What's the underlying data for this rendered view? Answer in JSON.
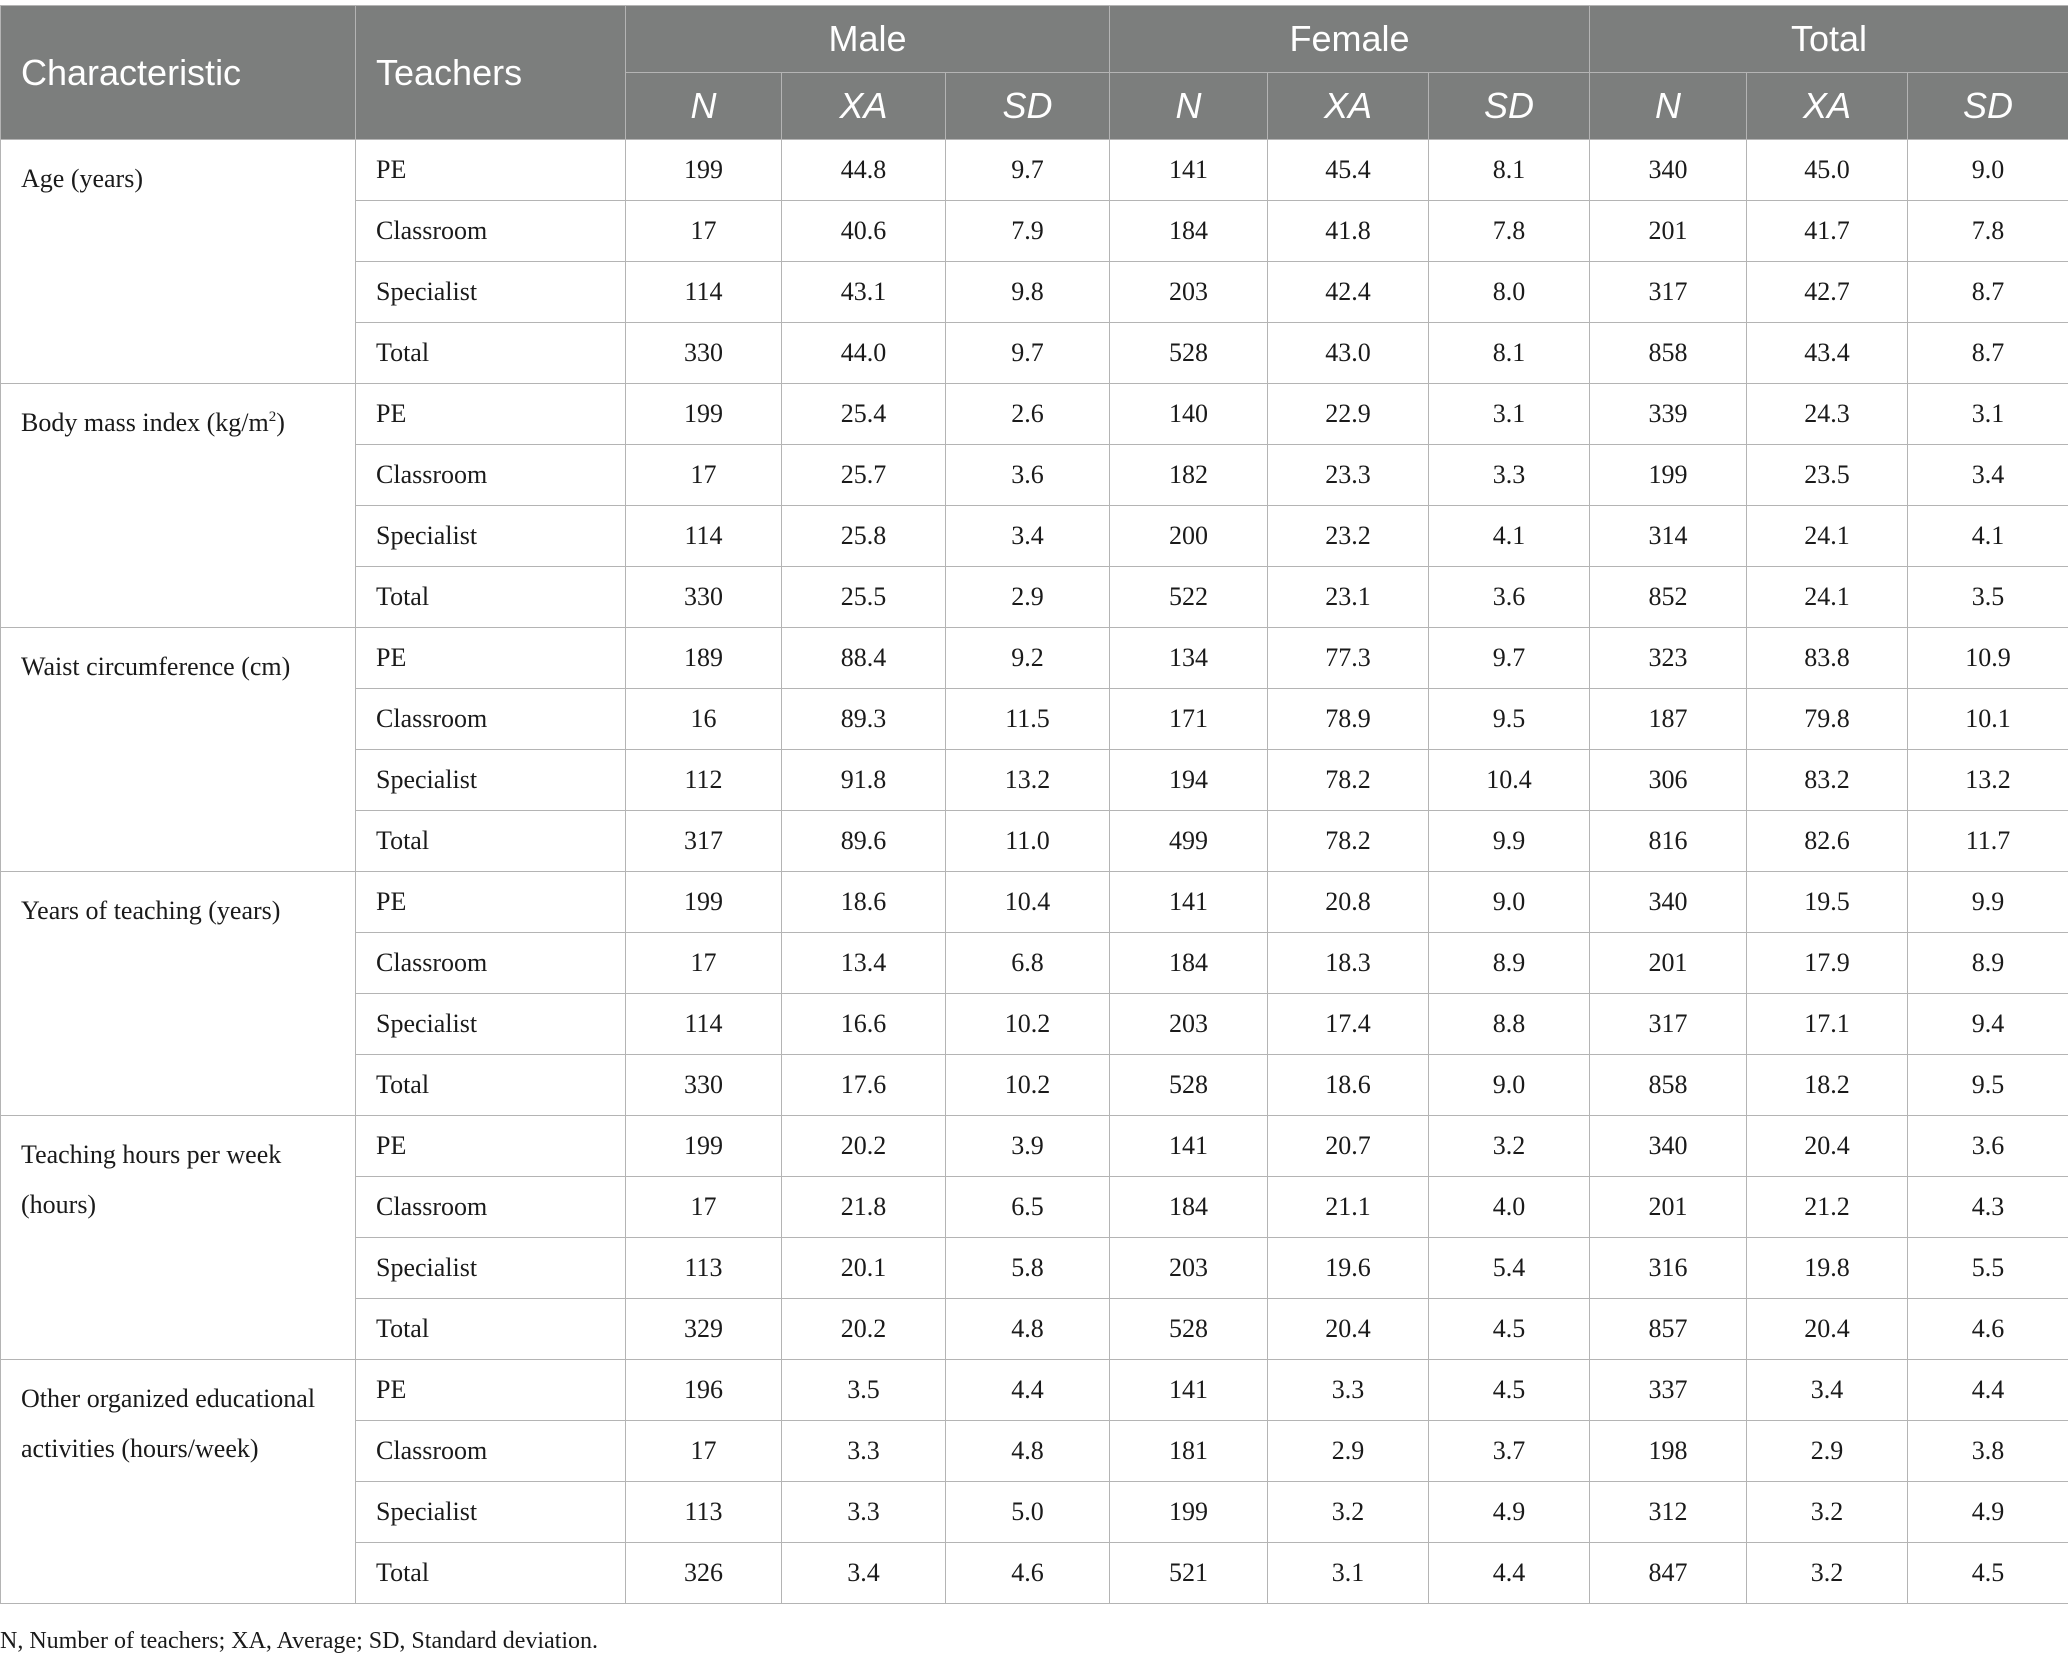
{
  "headers": {
    "characteristic": "Characteristic",
    "teachers": "Teachers",
    "groups": [
      "Male",
      "Female",
      "Total"
    ],
    "stats": [
      "N",
      "XA",
      "SD"
    ]
  },
  "sections": [
    {
      "label": "Age (years)",
      "rows": [
        {
          "teacher": "PE",
          "values": [
            "199",
            "44.8",
            "9.7",
            "141",
            "45.4",
            "8.1",
            "340",
            "45.0",
            "9.0"
          ]
        },
        {
          "teacher": "Classroom",
          "values": [
            "17",
            "40.6",
            "7.9",
            "184",
            "41.8",
            "7.8",
            "201",
            "41.7",
            "7.8"
          ]
        },
        {
          "teacher": "Specialist",
          "values": [
            "114",
            "43.1",
            "9.8",
            "203",
            "42.4",
            "8.0",
            "317",
            "42.7",
            "8.7"
          ]
        },
        {
          "teacher": "Total",
          "values": [
            "330",
            "44.0",
            "9.7",
            "528",
            "43.0",
            "8.1",
            "858",
            "43.4",
            "8.7"
          ]
        }
      ]
    },
    {
      "label": "Body mass index (kg/m",
      "label_sup": "2",
      "label_after": ")",
      "rows": [
        {
          "teacher": "PE",
          "values": [
            "199",
            "25.4",
            "2.6",
            "140",
            "22.9",
            "3.1",
            "339",
            "24.3",
            "3.1"
          ]
        },
        {
          "teacher": "Classroom",
          "values": [
            "17",
            "25.7",
            "3.6",
            "182",
            "23.3",
            "3.3",
            "199",
            "23.5",
            "3.4"
          ]
        },
        {
          "teacher": "Specialist",
          "values": [
            "114",
            "25.8",
            "3.4",
            "200",
            "23.2",
            "4.1",
            "314",
            "24.1",
            "4.1"
          ]
        },
        {
          "teacher": "Total",
          "values": [
            "330",
            "25.5",
            "2.9",
            "522",
            "23.1",
            "3.6",
            "852",
            "24.1",
            "3.5"
          ]
        }
      ]
    },
    {
      "label": "Waist circumference (cm)",
      "rows": [
        {
          "teacher": "PE",
          "values": [
            "189",
            "88.4",
            "9.2",
            "134",
            "77.3",
            "9.7",
            "323",
            "83.8",
            "10.9"
          ]
        },
        {
          "teacher": "Classroom",
          "values": [
            "16",
            "89.3",
            "11.5",
            "171",
            "78.9",
            "9.5",
            "187",
            "79.8",
            "10.1"
          ]
        },
        {
          "teacher": "Specialist",
          "values": [
            "112",
            "91.8",
            "13.2",
            "194",
            "78.2",
            "10.4",
            "306",
            "83.2",
            "13.2"
          ]
        },
        {
          "teacher": "Total",
          "values": [
            "317",
            "89.6",
            "11.0",
            "499",
            "78.2",
            "9.9",
            "816",
            "82.6",
            "11.7"
          ]
        }
      ]
    },
    {
      "label": "Years of teaching (years)",
      "rows": [
        {
          "teacher": "PE",
          "values": [
            "199",
            "18.6",
            "10.4",
            "141",
            "20.8",
            "9.0",
            "340",
            "19.5",
            "9.9"
          ]
        },
        {
          "teacher": "Classroom",
          "values": [
            "17",
            "13.4",
            "6.8",
            "184",
            "18.3",
            "8.9",
            "201",
            "17.9",
            "8.9"
          ]
        },
        {
          "teacher": "Specialist",
          "values": [
            "114",
            "16.6",
            "10.2",
            "203",
            "17.4",
            "8.8",
            "317",
            "17.1",
            "9.4"
          ]
        },
        {
          "teacher": "Total",
          "values": [
            "330",
            "17.6",
            "10.2",
            "528",
            "18.6",
            "9.0",
            "858",
            "18.2",
            "9.5"
          ]
        }
      ]
    },
    {
      "label": "Teaching hours per week (hours)",
      "rows": [
        {
          "teacher": "PE",
          "values": [
            "199",
            "20.2",
            "3.9",
            "141",
            "20.7",
            "3.2",
            "340",
            "20.4",
            "3.6"
          ]
        },
        {
          "teacher": "Classroom",
          "values": [
            "17",
            "21.8",
            "6.5",
            "184",
            "21.1",
            "4.0",
            "201",
            "21.2",
            "4.3"
          ]
        },
        {
          "teacher": "Specialist",
          "values": [
            "113",
            "20.1",
            "5.8",
            "203",
            "19.6",
            "5.4",
            "316",
            "19.8",
            "5.5"
          ]
        },
        {
          "teacher": "Total",
          "values": [
            "329",
            "20.2",
            "4.8",
            "528",
            "20.4",
            "4.5",
            "857",
            "20.4",
            "4.6"
          ]
        }
      ]
    },
    {
      "label": "Other organized educational activities (hours/week)",
      "rows": [
        {
          "teacher": "PE",
          "values": [
            "196",
            "3.5",
            "4.4",
            "141",
            "3.3",
            "4.5",
            "337",
            "3.4",
            "4.4"
          ]
        },
        {
          "teacher": "Classroom",
          "values": [
            "17",
            "3.3",
            "4.8",
            "181",
            "2.9",
            "3.7",
            "198",
            "2.9",
            "3.8"
          ]
        },
        {
          "teacher": "Specialist",
          "values": [
            "113",
            "3.3",
            "5.0",
            "199",
            "3.2",
            "4.9",
            "312",
            "3.2",
            "4.9"
          ]
        },
        {
          "teacher": "Total",
          "values": [
            "326",
            "3.4",
            "4.6",
            "521",
            "3.1",
            "4.4",
            "847",
            "3.2",
            "4.5"
          ]
        }
      ]
    }
  ],
  "footnote": "N, Number of teachers; XA, Average; SD, Standard deviation."
}
